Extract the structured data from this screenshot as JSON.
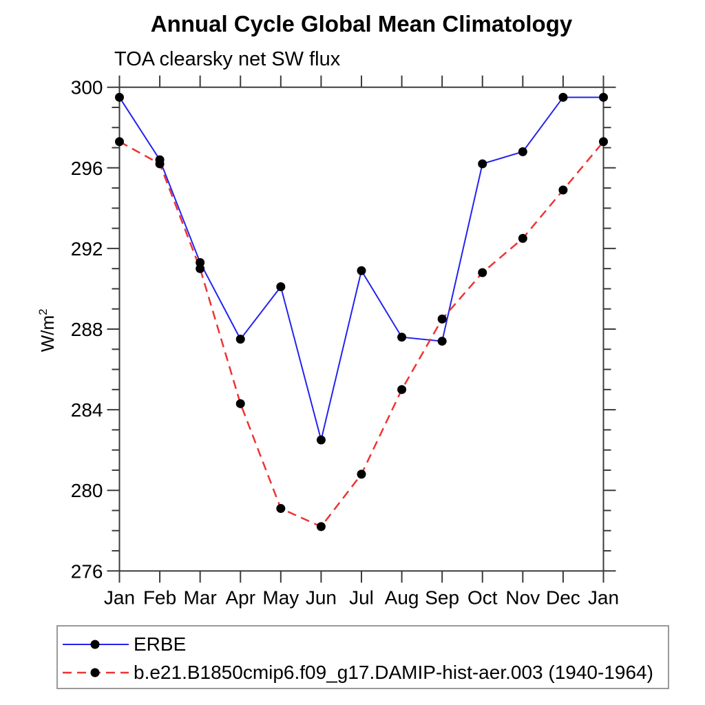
{
  "title": "Annual Cycle Global Mean Climatology",
  "subtitle": "TOA clearsky net SW flux",
  "ylabel": {
    "text": "W/m²",
    "base": "W/m",
    "sup": "2"
  },
  "colors": {
    "erbe_line": "#2222ee",
    "model_line": "#ee3333",
    "marker": "#000000",
    "axis": "#3a3a3a",
    "legend_border": "#999999",
    "text": "#000000"
  },
  "chart_data": {
    "type": "line",
    "title": "Annual Cycle Global Mean Climatology",
    "subtitle": "TOA clearsky net SW flux",
    "xlabel": "",
    "ylabel": "W/m²",
    "categories": [
      "Jan",
      "Feb",
      "Mar",
      "Apr",
      "May",
      "Jun",
      "Jul",
      "Aug",
      "Sep",
      "Oct",
      "Nov",
      "Dec",
      "Jan"
    ],
    "ylim": [
      276,
      300
    ],
    "yticks_major": [
      276,
      280,
      284,
      288,
      292,
      296,
      300
    ],
    "ytick_minor_step": 1,
    "grid": false,
    "legend_position": "bottom-left-box",
    "series": [
      {
        "name": "ERBE",
        "color": "#2222ee",
        "style": "solid",
        "marker": "filled-circle",
        "values": [
          299.5,
          296.4,
          291.3,
          287.5,
          290.1,
          282.5,
          290.9,
          287.6,
          287.4,
          296.2,
          296.8,
          299.5,
          299.5
        ]
      },
      {
        "name": "b.e21.B1850cmip6.f09_g17.DAMIP-hist-aer.003 (1940-1964)",
        "color": "#ee3333",
        "style": "dashed",
        "marker": "filled-circle",
        "values": [
          297.3,
          296.2,
          291.0,
          284.3,
          279.1,
          278.2,
          280.8,
          285.0,
          288.5,
          290.8,
          292.5,
          294.9,
          297.3
        ]
      }
    ]
  },
  "legend": {
    "entries": [
      {
        "label": "ERBE",
        "color": "#2222ee",
        "style": "solid"
      },
      {
        "label": "b.e21.B1850cmip6.f09_g17.DAMIP-hist-aer.003 (1940-1964)",
        "color": "#ee3333",
        "style": "dashed"
      }
    ]
  }
}
